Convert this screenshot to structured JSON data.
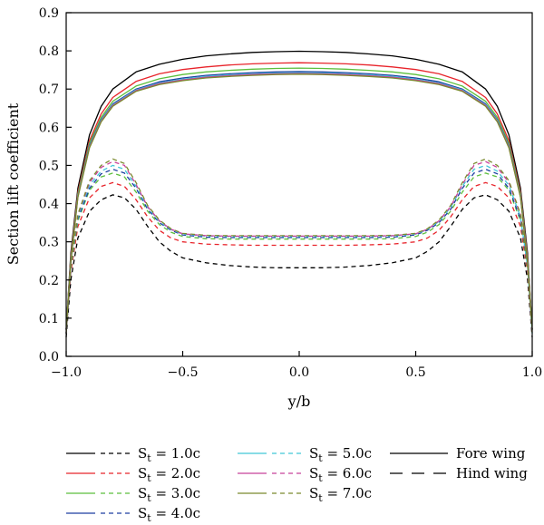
{
  "chart_data": {
    "type": "line",
    "xlabel": "y/b",
    "ylabel": "Section lift coefficient",
    "xlim": [
      -1.0,
      1.0
    ],
    "ylim": [
      0.0,
      0.9
    ],
    "xticks": [
      "−1.0",
      "−0.5",
      "0.0",
      "0.5",
      "1.0"
    ],
    "xtick_values": [
      -1.0,
      -0.5,
      0.0,
      0.5,
      1.0
    ],
    "yticks": [
      "0.0",
      "0.1",
      "0.2",
      "0.3",
      "0.4",
      "0.5",
      "0.6",
      "0.7",
      "0.8",
      "0.9"
    ],
    "ytick_values": [
      0.0,
      0.1,
      0.2,
      0.3,
      0.4,
      0.5,
      0.6,
      0.7,
      0.8,
      0.9
    ],
    "grid": false,
    "legend_position": "bottom",
    "style_legend": {
      "solid": "Fore wing",
      "dashed": "Hind wing"
    },
    "series": [
      {
        "name": "1.0c",
        "color": "#000000",
        "fore": {
          "x": [
            -1.0,
            -0.98,
            -0.95,
            -0.9,
            -0.85,
            -0.8,
            -0.7,
            -0.6,
            -0.5,
            -0.4,
            -0.3,
            -0.2,
            -0.1,
            0.0,
            0.1,
            0.2,
            0.3,
            0.4,
            0.5,
            0.6,
            0.7,
            0.8,
            0.85,
            0.9,
            0.95,
            0.98,
            1.0
          ],
          "y": [
            0.07,
            0.27,
            0.44,
            0.58,
            0.655,
            0.7,
            0.745,
            0.765,
            0.778,
            0.787,
            0.792,
            0.796,
            0.798,
            0.799,
            0.798,
            0.796,
            0.792,
            0.787,
            0.778,
            0.765,
            0.745,
            0.7,
            0.655,
            0.58,
            0.44,
            0.27,
            0.07
          ]
        },
        "hind": {
          "x": [
            -1.0,
            -0.98,
            -0.95,
            -0.9,
            -0.85,
            -0.8,
            -0.75,
            -0.7,
            -0.65,
            -0.6,
            -0.55,
            -0.5,
            -0.4,
            -0.3,
            -0.2,
            -0.1,
            0.0,
            0.1,
            0.2,
            0.3,
            0.4,
            0.5,
            0.55,
            0.6,
            0.65,
            0.7,
            0.75,
            0.8,
            0.85,
            0.9,
            0.95,
            0.98,
            1.0
          ],
          "y": [
            0.05,
            0.2,
            0.31,
            0.38,
            0.41,
            0.423,
            0.415,
            0.385,
            0.34,
            0.3,
            0.275,
            0.258,
            0.245,
            0.238,
            0.234,
            0.232,
            0.232,
            0.232,
            0.234,
            0.238,
            0.245,
            0.258,
            0.275,
            0.3,
            0.34,
            0.385,
            0.415,
            0.423,
            0.41,
            0.38,
            0.31,
            0.2,
            0.05
          ]
        }
      },
      {
        "name": "2.0c",
        "color": "#e8242b",
        "fore": {
          "x": [
            -1.0,
            -0.98,
            -0.95,
            -0.9,
            -0.85,
            -0.8,
            -0.7,
            -0.6,
            -0.5,
            -0.4,
            -0.3,
            -0.2,
            -0.1,
            0.0,
            0.1,
            0.2,
            0.3,
            0.4,
            0.5,
            0.6,
            0.7,
            0.8,
            0.85,
            0.9,
            0.95,
            0.98,
            1.0
          ],
          "y": [
            0.07,
            0.26,
            0.43,
            0.565,
            0.635,
            0.678,
            0.72,
            0.74,
            0.751,
            0.758,
            0.763,
            0.766,
            0.768,
            0.769,
            0.768,
            0.766,
            0.763,
            0.758,
            0.751,
            0.74,
            0.72,
            0.678,
            0.635,
            0.565,
            0.43,
            0.26,
            0.07
          ]
        },
        "hind": {
          "x": [
            -1.0,
            -0.98,
            -0.95,
            -0.9,
            -0.85,
            -0.8,
            -0.75,
            -0.7,
            -0.65,
            -0.6,
            -0.55,
            -0.5,
            -0.4,
            -0.3,
            -0.2,
            -0.1,
            0.0,
            0.1,
            0.2,
            0.3,
            0.4,
            0.5,
            0.55,
            0.6,
            0.65,
            0.7,
            0.75,
            0.8,
            0.85,
            0.9,
            0.95,
            0.98,
            1.0
          ],
          "y": [
            0.06,
            0.22,
            0.34,
            0.415,
            0.445,
            0.455,
            0.445,
            0.41,
            0.365,
            0.33,
            0.31,
            0.3,
            0.294,
            0.292,
            0.291,
            0.291,
            0.291,
            0.291,
            0.291,
            0.292,
            0.294,
            0.3,
            0.31,
            0.33,
            0.365,
            0.41,
            0.445,
            0.455,
            0.445,
            0.415,
            0.34,
            0.22,
            0.06
          ]
        }
      },
      {
        "name": "3.0c",
        "color": "#5cbf3c",
        "fore": {
          "x": [
            -1.0,
            -0.98,
            -0.95,
            -0.9,
            -0.85,
            -0.8,
            -0.7,
            -0.6,
            -0.5,
            -0.4,
            -0.3,
            -0.2,
            -0.1,
            0.0,
            0.1,
            0.2,
            0.3,
            0.4,
            0.5,
            0.6,
            0.7,
            0.8,
            0.85,
            0.9,
            0.95,
            0.98,
            1.0
          ],
          "y": [
            0.07,
            0.255,
            0.425,
            0.558,
            0.626,
            0.668,
            0.708,
            0.727,
            0.738,
            0.745,
            0.749,
            0.752,
            0.754,
            0.755,
            0.754,
            0.752,
            0.749,
            0.745,
            0.738,
            0.727,
            0.708,
            0.668,
            0.626,
            0.558,
            0.425,
            0.255,
            0.07
          ]
        },
        "hind": {
          "x": [
            -1.0,
            -0.98,
            -0.95,
            -0.9,
            -0.85,
            -0.8,
            -0.75,
            -0.7,
            -0.65,
            -0.6,
            -0.55,
            -0.5,
            -0.4,
            -0.3,
            -0.2,
            -0.1,
            0.0,
            0.1,
            0.2,
            0.3,
            0.4,
            0.5,
            0.55,
            0.6,
            0.65,
            0.7,
            0.75,
            0.8,
            0.85,
            0.9,
            0.95,
            0.98,
            1.0
          ],
          "y": [
            0.06,
            0.23,
            0.355,
            0.435,
            0.47,
            0.48,
            0.47,
            0.43,
            0.38,
            0.345,
            0.325,
            0.314,
            0.308,
            0.307,
            0.307,
            0.307,
            0.307,
            0.307,
            0.307,
            0.307,
            0.308,
            0.314,
            0.325,
            0.345,
            0.38,
            0.43,
            0.47,
            0.48,
            0.47,
            0.435,
            0.355,
            0.23,
            0.06
          ]
        }
      },
      {
        "name": "4.0c",
        "color": "#1e3fa0",
        "fore": {
          "x": [
            -1.0,
            -0.98,
            -0.95,
            -0.9,
            -0.85,
            -0.8,
            -0.7,
            -0.6,
            -0.5,
            -0.4,
            -0.3,
            -0.2,
            -0.1,
            0.0,
            0.1,
            0.2,
            0.3,
            0.4,
            0.5,
            0.6,
            0.7,
            0.8,
            0.85,
            0.9,
            0.95,
            0.98,
            1.0
          ],
          "y": [
            0.07,
            0.25,
            0.42,
            0.552,
            0.62,
            0.661,
            0.7,
            0.719,
            0.729,
            0.736,
            0.74,
            0.743,
            0.745,
            0.746,
            0.745,
            0.743,
            0.74,
            0.736,
            0.729,
            0.719,
            0.7,
            0.661,
            0.62,
            0.552,
            0.42,
            0.25,
            0.07
          ]
        },
        "hind": {
          "x": [
            -1.0,
            -0.98,
            -0.95,
            -0.9,
            -0.85,
            -0.8,
            -0.75,
            -0.7,
            -0.65,
            -0.6,
            -0.55,
            -0.5,
            -0.4,
            -0.3,
            -0.2,
            -0.1,
            0.0,
            0.1,
            0.2,
            0.3,
            0.4,
            0.5,
            0.55,
            0.6,
            0.65,
            0.7,
            0.75,
            0.8,
            0.85,
            0.9,
            0.95,
            0.98,
            1.0
          ],
          "y": [
            0.06,
            0.235,
            0.36,
            0.44,
            0.478,
            0.49,
            0.48,
            0.44,
            0.385,
            0.35,
            0.33,
            0.318,
            0.312,
            0.311,
            0.311,
            0.311,
            0.311,
            0.311,
            0.311,
            0.311,
            0.312,
            0.318,
            0.33,
            0.35,
            0.385,
            0.44,
            0.48,
            0.49,
            0.478,
            0.44,
            0.36,
            0.235,
            0.06
          ]
        }
      },
      {
        "name": "5.0c",
        "color": "#40c8d8",
        "fore": {
          "x": [
            -1.0,
            -0.98,
            -0.95,
            -0.9,
            -0.85,
            -0.8,
            -0.7,
            -0.6,
            -0.5,
            -0.4,
            -0.3,
            -0.2,
            -0.1,
            0.0,
            0.1,
            0.2,
            0.3,
            0.4,
            0.5,
            0.6,
            0.7,
            0.8,
            0.85,
            0.9,
            0.95,
            0.98,
            1.0
          ],
          "y": [
            0.07,
            0.25,
            0.42,
            0.55,
            0.618,
            0.659,
            0.698,
            0.716,
            0.726,
            0.733,
            0.737,
            0.74,
            0.742,
            0.743,
            0.742,
            0.74,
            0.737,
            0.733,
            0.726,
            0.716,
            0.698,
            0.659,
            0.618,
            0.55,
            0.42,
            0.25,
            0.07
          ]
        },
        "hind": {
          "x": [
            -1.0,
            -0.98,
            -0.95,
            -0.9,
            -0.85,
            -0.8,
            -0.75,
            -0.7,
            -0.65,
            -0.6,
            -0.55,
            -0.5,
            -0.4,
            -0.3,
            -0.2,
            -0.1,
            0.0,
            0.1,
            0.2,
            0.3,
            0.4,
            0.5,
            0.55,
            0.6,
            0.65,
            0.7,
            0.75,
            0.8,
            0.85,
            0.9,
            0.95,
            0.98,
            1.0
          ],
          "y": [
            0.06,
            0.235,
            0.365,
            0.448,
            0.485,
            0.5,
            0.49,
            0.445,
            0.39,
            0.353,
            0.332,
            0.32,
            0.315,
            0.314,
            0.314,
            0.314,
            0.314,
            0.314,
            0.314,
            0.314,
            0.315,
            0.32,
            0.332,
            0.353,
            0.39,
            0.445,
            0.49,
            0.5,
            0.485,
            0.448,
            0.365,
            0.235,
            0.06
          ]
        }
      },
      {
        "name": "6.0c",
        "color": "#c8409a",
        "fore": {
          "x": [
            -1.0,
            -0.98,
            -0.95,
            -0.9,
            -0.85,
            -0.8,
            -0.7,
            -0.6,
            -0.5,
            -0.4,
            -0.3,
            -0.2,
            -0.1,
            0.0,
            0.1,
            0.2,
            0.3,
            0.4,
            0.5,
            0.6,
            0.7,
            0.8,
            0.85,
            0.9,
            0.95,
            0.98,
            1.0
          ],
          "y": [
            0.07,
            0.248,
            0.418,
            0.548,
            0.616,
            0.657,
            0.696,
            0.714,
            0.724,
            0.731,
            0.735,
            0.738,
            0.74,
            0.741,
            0.74,
            0.738,
            0.735,
            0.731,
            0.724,
            0.714,
            0.696,
            0.657,
            0.616,
            0.548,
            0.418,
            0.248,
            0.07
          ]
        },
        "hind": {
          "x": [
            -1.0,
            -0.98,
            -0.95,
            -0.9,
            -0.85,
            -0.8,
            -0.75,
            -0.7,
            -0.65,
            -0.6,
            -0.55,
            -0.5,
            -0.4,
            -0.3,
            -0.2,
            -0.1,
            0.0,
            0.1,
            0.2,
            0.3,
            0.4,
            0.5,
            0.55,
            0.6,
            0.65,
            0.7,
            0.75,
            0.8,
            0.85,
            0.9,
            0.95,
            0.98,
            1.0
          ],
          "y": [
            0.06,
            0.24,
            0.37,
            0.455,
            0.495,
            0.51,
            0.5,
            0.45,
            0.392,
            0.355,
            0.333,
            0.321,
            0.316,
            0.315,
            0.315,
            0.315,
            0.315,
            0.315,
            0.315,
            0.315,
            0.316,
            0.321,
            0.333,
            0.355,
            0.392,
            0.45,
            0.5,
            0.51,
            0.495,
            0.455,
            0.37,
            0.24,
            0.06
          ]
        }
      },
      {
        "name": "7.0c",
        "color": "#7a8a2e",
        "fore": {
          "x": [
            -1.0,
            -0.98,
            -0.95,
            -0.9,
            -0.85,
            -0.8,
            -0.7,
            -0.6,
            -0.5,
            -0.4,
            -0.3,
            -0.2,
            -0.1,
            0.0,
            0.1,
            0.2,
            0.3,
            0.4,
            0.5,
            0.6,
            0.7,
            0.8,
            0.85,
            0.9,
            0.95,
            0.98,
            1.0
          ],
          "y": [
            0.07,
            0.246,
            0.416,
            0.546,
            0.614,
            0.655,
            0.694,
            0.712,
            0.722,
            0.729,
            0.733,
            0.736,
            0.738,
            0.739,
            0.738,
            0.736,
            0.733,
            0.729,
            0.722,
            0.712,
            0.694,
            0.655,
            0.614,
            0.546,
            0.416,
            0.246,
            0.07
          ]
        },
        "hind": {
          "x": [
            -1.0,
            -0.98,
            -0.95,
            -0.9,
            -0.85,
            -0.8,
            -0.75,
            -0.7,
            -0.65,
            -0.6,
            -0.55,
            -0.5,
            -0.4,
            -0.3,
            -0.2,
            -0.1,
            0.0,
            0.1,
            0.2,
            0.3,
            0.4,
            0.5,
            0.55,
            0.6,
            0.65,
            0.7,
            0.75,
            0.8,
            0.85,
            0.9,
            0.95,
            0.98,
            1.0
          ],
          "y": [
            0.06,
            0.24,
            0.372,
            0.46,
            0.5,
            0.517,
            0.505,
            0.455,
            0.395,
            0.357,
            0.334,
            0.322,
            0.317,
            0.316,
            0.316,
            0.316,
            0.316,
            0.316,
            0.316,
            0.316,
            0.317,
            0.322,
            0.334,
            0.357,
            0.395,
            0.455,
            0.505,
            0.517,
            0.5,
            0.46,
            0.372,
            0.24,
            0.06
          ]
        }
      }
    ]
  },
  "legend": {
    "entries": [
      {
        "prefix": "S",
        "subscript": "t",
        "value": " = 1.0c"
      },
      {
        "prefix": "S",
        "subscript": "t",
        "value": " = 2.0c"
      },
      {
        "prefix": "S",
        "subscript": "t",
        "value": " = 3.0c"
      },
      {
        "prefix": "S",
        "subscript": "t",
        "value": " = 4.0c"
      },
      {
        "prefix": "S",
        "subscript": "t",
        "value": " = 5.0c"
      },
      {
        "prefix": "S",
        "subscript": "t",
        "value": " = 6.0c"
      },
      {
        "prefix": "S",
        "subscript": "t",
        "value": " = 7.0c"
      }
    ],
    "style_entries": [
      "Fore wing",
      "Hind wing"
    ]
  }
}
